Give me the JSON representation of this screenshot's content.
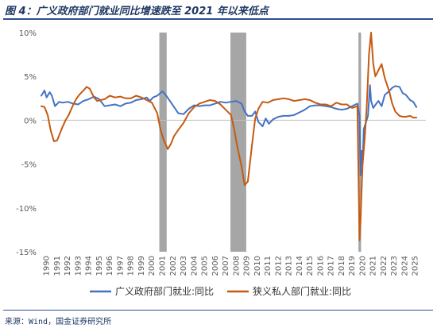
{
  "title": "图 4：广义政府部门就业同比增速跌至 2021 年以来低点",
  "source": "来源：Wind，国金证券研究所",
  "chart_data": {
    "type": "line",
    "title": "图 4：广义政府部门就业同比增速跌至 2021 年以来低点",
    "xlabel": "",
    "ylabel": "",
    "xlim": [
      1990,
      2026.5
    ],
    "ylim": [
      -15,
      10
    ],
    "y_ticks": [
      10,
      5,
      0,
      -5,
      -10,
      -15
    ],
    "y_tick_labels": [
      "10%",
      "5%",
      "0%",
      "-5%",
      "-10%",
      "-15%"
    ],
    "x_ticks": [
      "1990",
      "1991",
      "1992",
      "1993",
      "1994",
      "1995",
      "1996",
      "1997",
      "1998",
      "1999",
      "2000",
      "2001",
      "2002",
      "2003",
      "2004",
      "2005",
      "2006",
      "2007",
      "2008",
      "2009",
      "2010",
      "2011",
      "2012",
      "2013",
      "2014",
      "2015",
      "2016",
      "2017",
      "2018",
      "2019",
      "2020",
      "2021",
      "2022",
      "2023",
      "2024",
      "2025"
    ],
    "recessions": [
      [
        2001.2,
        2001.9
      ],
      [
        2007.95,
        2009.45
      ],
      [
        2020.1,
        2020.35
      ]
    ],
    "legend_position": "bottom",
    "series": [
      {
        "name": "广义政府部门就业:同比",
        "color": "#4472c4",
        "x": [
          1990.0,
          1990.3,
          1990.5,
          1990.8,
          1991.0,
          1991.3,
          1991.7,
          1992.0,
          1992.5,
          1993.0,
          1993.5,
          1994.0,
          1994.5,
          1995.0,
          1995.5,
          1996.0,
          1996.5,
          1997.0,
          1997.5,
          1998.0,
          1998.5,
          1999.0,
          1999.5,
          2000.0,
          2000.3,
          2000.6,
          2001.0,
          2001.5,
          2001.8,
          2002.2,
          2002.6,
          2003.0,
          2003.5,
          2004.0,
          2004.5,
          2005.0,
          2005.5,
          2006.0,
          2006.5,
          2007.0,
          2007.5,
          2008.0,
          2008.5,
          2009.0,
          2009.3,
          2009.6,
          2010.0,
          2010.3,
          2010.6,
          2011.0,
          2011.3,
          2011.6,
          2012.0,
          2012.5,
          2013.0,
          2013.5,
          2014.0,
          2014.5,
          2015.0,
          2015.5,
          2016.0,
          2016.5,
          2017.0,
          2017.5,
          2018.0,
          2018.5,
          2019.0,
          2019.5,
          2020.0,
          2020.2,
          2020.3,
          2020.4,
          2020.5,
          2020.6,
          2020.8,
          2021.0,
          2021.2,
          2021.3,
          2021.5,
          2021.8,
          2022.0,
          2022.3,
          2022.6,
          2023.0,
          2023.3,
          2023.6,
          2024.0,
          2024.3,
          2024.6,
          2025.0,
          2025.3,
          2025.6
        ],
        "values": [
          2.8,
          3.4,
          2.6,
          3.2,
          2.8,
          1.6,
          2.1,
          2.0,
          2.1,
          1.9,
          1.8,
          2.2,
          2.4,
          2.7,
          2.4,
          1.6,
          1.7,
          1.8,
          1.6,
          1.9,
          2.0,
          2.3,
          2.4,
          2.6,
          2.2,
          2.6,
          2.8,
          3.3,
          2.9,
          2.2,
          1.5,
          0.8,
          0.7,
          1.3,
          1.7,
          1.6,
          1.7,
          1.7,
          1.9,
          2.1,
          2.0,
          2.1,
          2.2,
          1.9,
          1.0,
          0.5,
          0.5,
          1.0,
          -0.2,
          -0.7,
          0.2,
          -0.4,
          0.1,
          0.4,
          0.5,
          0.5,
          0.6,
          0.9,
          1.2,
          1.6,
          1.7,
          1.7,
          1.6,
          1.5,
          1.3,
          1.2,
          1.3,
          1.6,
          1.9,
          0.5,
          -6.3,
          -3.5,
          -5.0,
          -1.0,
          -0.3,
          0.5,
          4.0,
          2.2,
          1.4,
          1.9,
          2.2,
          1.6,
          2.9,
          3.3,
          3.7,
          3.9,
          3.8,
          3.1,
          2.9,
          2.3,
          2.1,
          1.5
        ]
      },
      {
        "name": "狭义私人部门就业:同比",
        "color": "#c55a11",
        "x": [
          1990.0,
          1990.3,
          1990.6,
          1990.9,
          1991.2,
          1991.5,
          1991.7,
          1992.0,
          1992.3,
          1992.6,
          1993.0,
          1993.3,
          1993.6,
          1994.0,
          1994.3,
          1994.6,
          1995.0,
          1995.3,
          1995.6,
          1996.0,
          1996.5,
          1997.0,
          1997.5,
          1998.0,
          1998.5,
          1999.0,
          1999.5,
          2000.0,
          2000.5,
          2001.0,
          2001.3,
          2001.6,
          2002.0,
          2002.3,
          2002.6,
          2003.0,
          2003.5,
          2004.0,
          2004.5,
          2005.0,
          2005.5,
          2006.0,
          2006.5,
          2007.0,
          2007.5,
          2008.0,
          2008.3,
          2008.6,
          2009.0,
          2009.3,
          2009.6,
          2010.0,
          2010.3,
          2010.6,
          2011.0,
          2011.5,
          2012.0,
          2012.5,
          2013.0,
          2013.5,
          2014.0,
          2014.5,
          2015.0,
          2015.5,
          2016.0,
          2016.5,
          2017.0,
          2017.5,
          2018.0,
          2018.5,
          2019.0,
          2019.5,
          2020.0,
          2020.2,
          2020.3,
          2020.4,
          2020.5,
          2020.7,
          2020.9,
          2021.1,
          2021.3,
          2021.5,
          2021.7,
          2022.0,
          2022.3,
          2022.6,
          2023.0,
          2023.3,
          2023.6,
          2024.0,
          2024.3,
          2024.6,
          2025.0,
          2025.3,
          2025.6
        ],
        "values": [
          1.6,
          1.5,
          0.6,
          -1.2,
          -2.4,
          -2.3,
          -1.7,
          -0.8,
          0.0,
          0.6,
          1.7,
          2.4,
          2.9,
          3.4,
          3.8,
          3.6,
          2.6,
          2.2,
          2.3,
          2.4,
          2.8,
          2.6,
          2.7,
          2.5,
          2.5,
          2.8,
          2.6,
          2.3,
          2.0,
          0.8,
          -1.0,
          -2.2,
          -3.3,
          -2.7,
          -1.8,
          -1.1,
          -0.3,
          0.8,
          1.5,
          1.9,
          2.1,
          2.3,
          2.2,
          1.8,
          1.2,
          0.6,
          -1.0,
          -3.0,
          -5.2,
          -7.4,
          -7.0,
          -2.8,
          0.2,
          1.3,
          2.1,
          2.0,
          2.3,
          2.4,
          2.5,
          2.4,
          2.2,
          2.3,
          2.4,
          2.3,
          2.0,
          1.8,
          1.8,
          1.6,
          2.0,
          1.8,
          1.8,
          1.4,
          1.6,
          -13.7,
          -11.5,
          -8.0,
          -5.0,
          -2.0,
          1.8,
          7.5,
          10.0,
          6.5,
          5.0,
          5.7,
          6.4,
          4.8,
          3.4,
          1.9,
          1.0,
          0.5,
          0.4,
          0.4,
          0.5,
          0.3,
          0.3
        ]
      }
    ]
  }
}
